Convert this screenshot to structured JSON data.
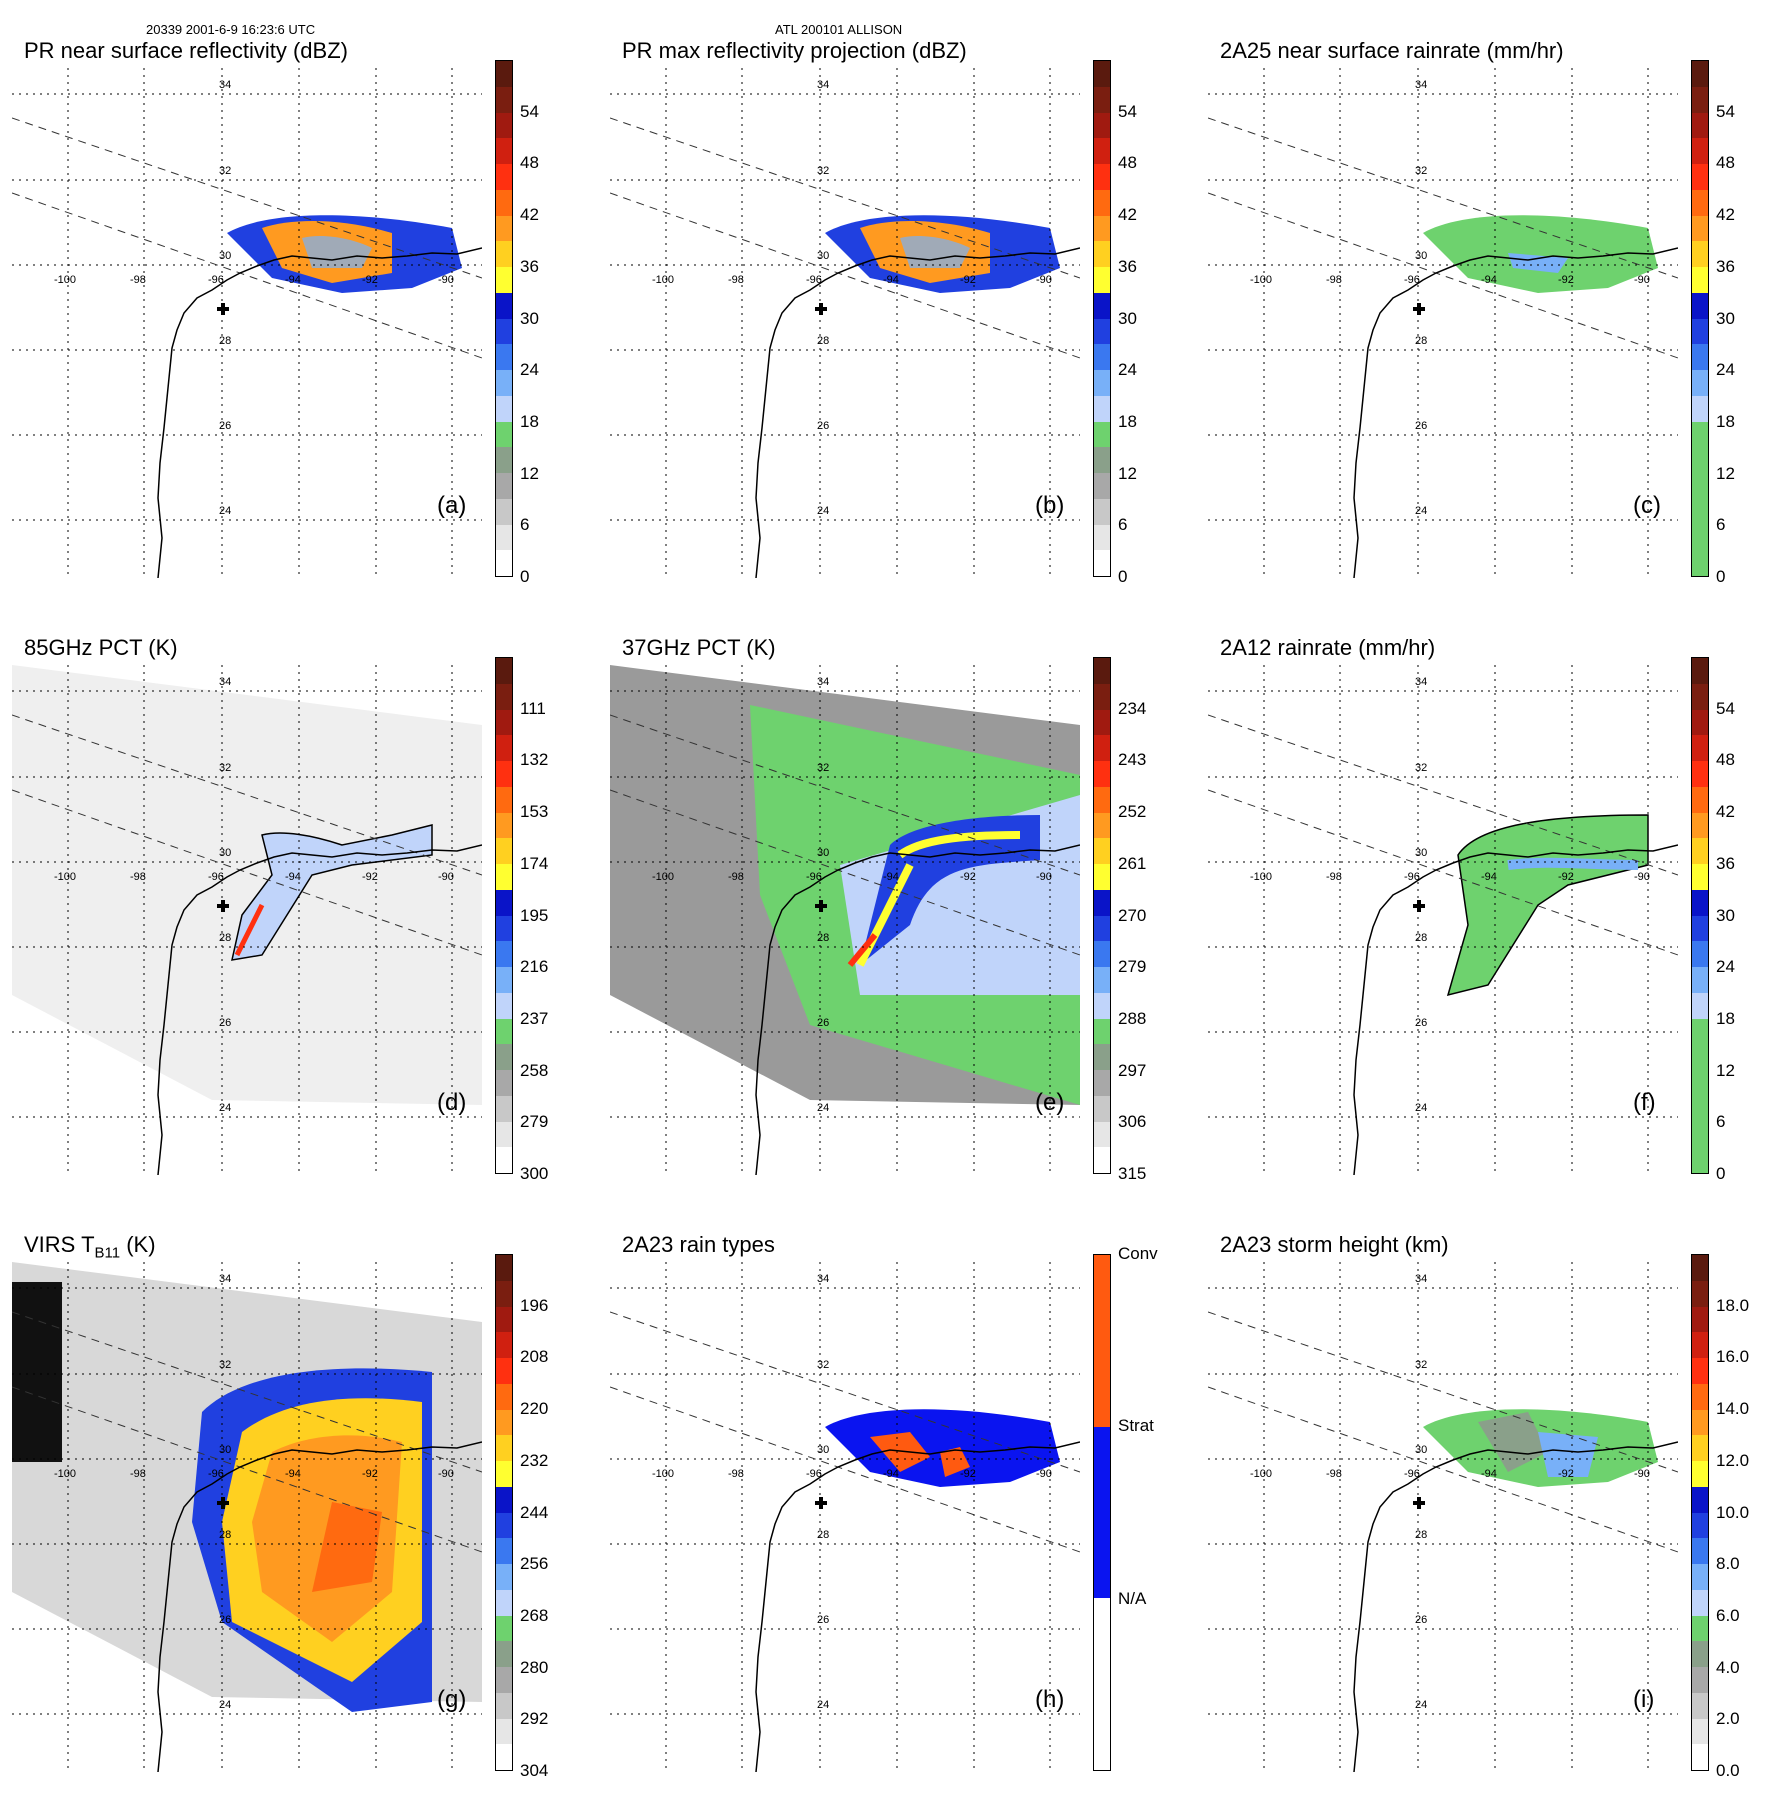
{
  "header": {
    "left": "20339 2001-6-9 16:23:6 UTC",
    "center": "ATL 200101 ALLISON"
  },
  "map_labels": {
    "lats": [
      "34",
      "32",
      "30",
      "28",
      "26",
      "24"
    ],
    "lons": [
      "-100",
      "-98",
      "-96",
      "-94",
      "-92",
      "-90"
    ]
  },
  "panels": [
    {
      "id": "a",
      "title": "PR near surface reflectivity (dBZ)",
      "label": "(a)",
      "field": "reflectivity",
      "ticks": [
        "54",
        "48",
        "42",
        "36",
        "30",
        "24",
        "18",
        "12",
        "6",
        "0"
      ],
      "colors": [
        "#5a1a0e",
        "#7a1e10",
        "#a01a10",
        "#d02010",
        "#ff3010",
        "#ff6a10",
        "#ff9a20",
        "#ffd020",
        "#ffff30",
        "#0a14c8",
        "#2040e0",
        "#3a78f0",
        "#78b0f8",
        "#c0d4fa",
        "#6ed26e",
        "#8aa08a",
        "#a8a8a8",
        "#c8c8c8",
        "#e6e6e6",
        "#ffffff"
      ]
    },
    {
      "id": "b",
      "title": "PR max reflectivity projection (dBZ)",
      "label": "(b)",
      "field": "reflectivity_max",
      "ticks": [
        "54",
        "48",
        "42",
        "36",
        "30",
        "24",
        "18",
        "12",
        "6",
        "0"
      ],
      "colors": [
        "#5a1a0e",
        "#7a1e10",
        "#a01a10",
        "#d02010",
        "#ff3010",
        "#ff6a10",
        "#ff9a20",
        "#ffd020",
        "#ffff30",
        "#0a14c8",
        "#2040e0",
        "#3a78f0",
        "#78b0f8",
        "#c0d4fa",
        "#6ed26e",
        "#8aa08a",
        "#a8a8a8",
        "#c8c8c8",
        "#e6e6e6",
        "#ffffff"
      ]
    },
    {
      "id": "c",
      "title": "2A25 near surface rainrate (mm/hr)",
      "label": "(c)",
      "field": "rainrate",
      "ticks": [
        "54",
        "48",
        "42",
        "36",
        "30",
        "24",
        "18",
        "12",
        "6",
        "0"
      ],
      "colors": [
        "#5a1a0e",
        "#7a1e10",
        "#a01a10",
        "#d02010",
        "#ff3010",
        "#ff6a10",
        "#ff9a20",
        "#ffd020",
        "#ffff30",
        "#0a14c8",
        "#2040e0",
        "#3a78f0",
        "#78b0f8",
        "#c0d4fa",
        "#6ed26e",
        "#6ed26e",
        "#6ed26e",
        "#6ed26e",
        "#6ed26e",
        "#6ed26e"
      ]
    },
    {
      "id": "d",
      "title": "85GHz PCT (K)",
      "label": "(d)",
      "field": "pct85",
      "ticks": [
        "111",
        "132",
        "153",
        "174",
        "195",
        "216",
        "237",
        "258",
        "279",
        "300"
      ],
      "colors": [
        "#5a1a0e",
        "#7a1e10",
        "#a01a10",
        "#d02010",
        "#ff3010",
        "#ff6a10",
        "#ff9a20",
        "#ffd020",
        "#ffff30",
        "#0a14c8",
        "#2040e0",
        "#3a78f0",
        "#78b0f8",
        "#c0d4fa",
        "#6ed26e",
        "#8aa08a",
        "#a8a8a8",
        "#c8c8c8",
        "#e6e6e6",
        "#ffffff"
      ]
    },
    {
      "id": "e",
      "title": "37GHz PCT (K)",
      "label": "(e)",
      "field": "pct37",
      "ticks": [
        "234",
        "243",
        "252",
        "261",
        "270",
        "279",
        "288",
        "297",
        "306",
        "315"
      ],
      "colors": [
        "#5a1a0e",
        "#7a1e10",
        "#a01a10",
        "#d02010",
        "#ff3010",
        "#ff6a10",
        "#ff9a20",
        "#ffd020",
        "#ffff30",
        "#0a14c8",
        "#2040e0",
        "#3a78f0",
        "#78b0f8",
        "#c0d4fa",
        "#6ed26e",
        "#8aa08a",
        "#a8a8a8",
        "#c8c8c8",
        "#e6e6e6",
        "#ffffff"
      ]
    },
    {
      "id": "f",
      "title": "2A12 rainrate (mm/hr)",
      "label": "(f)",
      "field": "rainrate12",
      "ticks": [
        "54",
        "48",
        "42",
        "36",
        "30",
        "24",
        "18",
        "12",
        "6",
        "0"
      ],
      "colors": [
        "#5a1a0e",
        "#7a1e10",
        "#a01a10",
        "#d02010",
        "#ff3010",
        "#ff6a10",
        "#ff9a20",
        "#ffd020",
        "#ffff30",
        "#0a14c8",
        "#2040e0",
        "#3a78f0",
        "#78b0f8",
        "#c0d4fa",
        "#6ed26e",
        "#6ed26e",
        "#6ed26e",
        "#6ed26e",
        "#6ed26e",
        "#6ed26e"
      ]
    },
    {
      "id": "g",
      "title": "VIRS T",
      "title_sub": "B11",
      "title_tail": " (K)",
      "label": "(g)",
      "field": "virs",
      "ticks": [
        "196",
        "208",
        "220",
        "232",
        "244",
        "256",
        "268",
        "280",
        "292",
        "304"
      ],
      "colors": [
        "#5a1a0e",
        "#7a1e10",
        "#a01a10",
        "#d02010",
        "#ff3010",
        "#ff6a10",
        "#ff9a20",
        "#ffd020",
        "#ffff30",
        "#0a14c8",
        "#2040e0",
        "#3a78f0",
        "#78b0f8",
        "#c0d4fa",
        "#6ed26e",
        "#8aa08a",
        "#a8a8a8",
        "#c8c8c8",
        "#e6e6e6",
        "#ffffff"
      ]
    },
    {
      "id": "h",
      "title": "2A23 rain types",
      "label": "(h)",
      "field": "raintype",
      "ticks": [
        "Conv",
        "Strat",
        "N/A"
      ],
      "colors": [
        "#ff5a10",
        "#ff5a10",
        "#ff5a10",
        "#0a14f0",
        "#0a14f0",
        "#0a14f0",
        "#ffffff",
        "#ffffff",
        "#ffffff"
      ]
    },
    {
      "id": "i",
      "title": "2A23 storm height (km)",
      "label": "(i)",
      "field": "stormheight",
      "ticks": [
        "18.0",
        "16.0",
        "14.0",
        "12.0",
        "10.0",
        "8.0",
        "6.0",
        "4.0",
        "2.0",
        "0.0"
      ],
      "colors": [
        "#5a1a0e",
        "#7a1e10",
        "#a01a10",
        "#d02010",
        "#ff3010",
        "#ff6a10",
        "#ff9a20",
        "#ffd020",
        "#ffff30",
        "#0a14c8",
        "#2040e0",
        "#3a78f0",
        "#78b0f8",
        "#c0d4fa",
        "#6ed26e",
        "#8aa08a",
        "#a8a8a8",
        "#c8c8c8",
        "#e6e6e6",
        "#ffffff"
      ]
    }
  ]
}
